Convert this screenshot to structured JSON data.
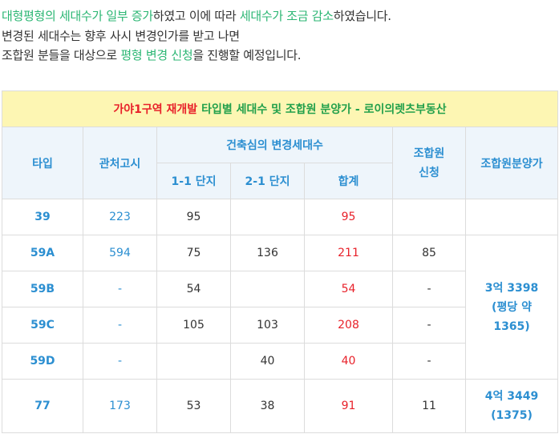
{
  "intro": {
    "line1": [
      {
        "text": "대형평형의 세대수가 일부 증가",
        "hl": true
      },
      {
        "text": "하였고 이에 따라 ",
        "hl": false
      },
      {
        "text": "세대수가 조금 감소",
        "hl": true
      },
      {
        "text": "하였습니다.",
        "hl": false
      }
    ],
    "line2": "변경된 세대수는 향후 사시 변경인가를 받고 나면",
    "line3": [
      {
        "text": "조합원 분들을 대상으로 ",
        "hl": false
      },
      {
        "text": "평형 변경 신청",
        "hl": true
      },
      {
        "text": "을 진행할 예정입니다.",
        "hl": false
      }
    ]
  },
  "table": {
    "title": {
      "part1": "가야1구역 재개발 ",
      "part2": "타입별 세대수 및 조합원 분양가 - ",
      "part3": "로이의렛츠부동산"
    },
    "headers": {
      "type": "타입",
      "notice": "관처고시",
      "changed": "건축심의 변경세대수",
      "block1": "1-1 단지",
      "block2": "2-1 단지",
      "total": "합계",
      "apply": "조합원\n신청",
      "price": "조합원분양가"
    },
    "rows": [
      {
        "type": "39",
        "notice": "223",
        "b1": "95",
        "b2": "",
        "total": "95",
        "apply": ""
      },
      {
        "type": "59A",
        "notice": "594",
        "b1": "75",
        "b2": "136",
        "total": "211",
        "apply": "85"
      },
      {
        "type": "59B",
        "notice": "-",
        "b1": "54",
        "b2": "",
        "total": "54",
        "apply": "-"
      },
      {
        "type": "59C",
        "notice": "-",
        "b1": "105",
        "b2": "103",
        "total": "208",
        "apply": "-"
      },
      {
        "type": "59D",
        "notice": "-",
        "b1": "",
        "b2": "40",
        "total": "40",
        "apply": "-"
      },
      {
        "type": "77",
        "notice": "173",
        "b1": "53",
        "b2": "38",
        "total": "91",
        "apply": "11"
      }
    ],
    "price_groups": {
      "row39": "",
      "group59": [
        "3억 3398",
        "(평당 약",
        "1365)"
      ],
      "group77": [
        "4억 3449",
        "(1375)"
      ]
    }
  }
}
